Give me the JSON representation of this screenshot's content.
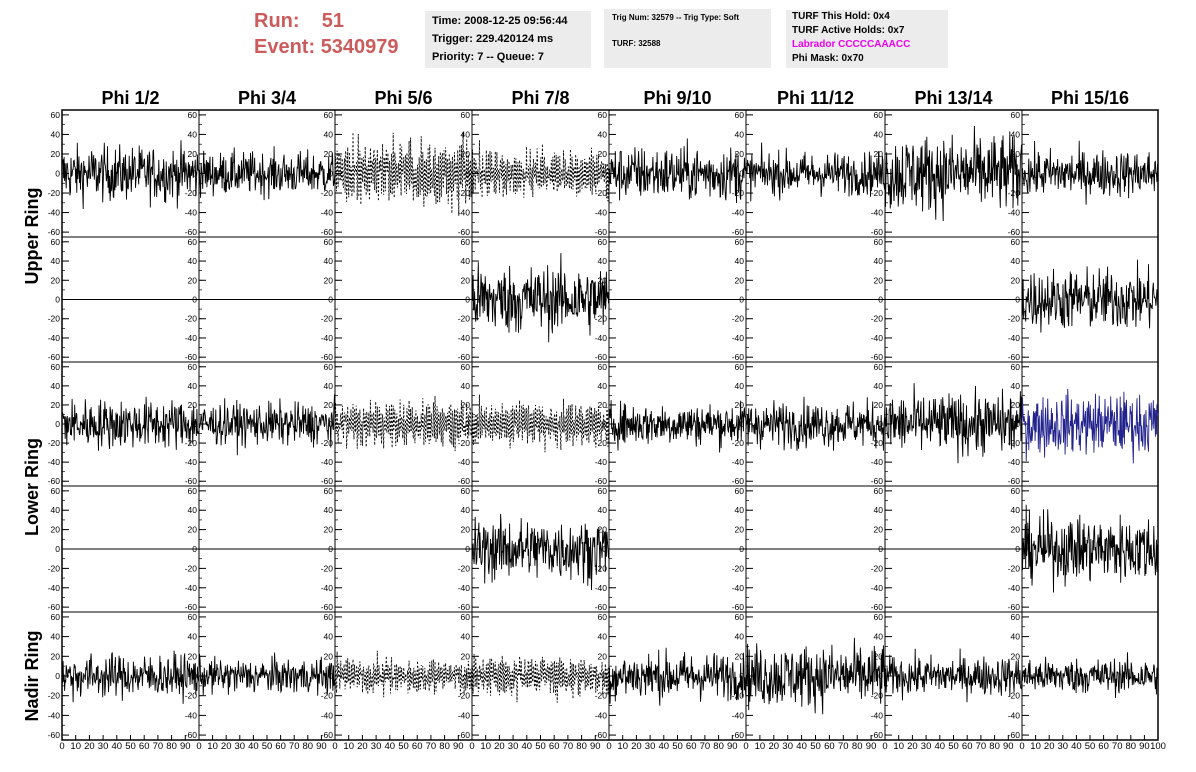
{
  "header": {
    "run_label": "Run:",
    "run_value": "51",
    "event_label": "Event:",
    "event_value": "5340979",
    "header_color": "#cc5c5c"
  },
  "info_time": {
    "time": "Time: 2008-12-25 09:56:44",
    "trigger": "Trigger: 229.420124 ms",
    "priority": "Priority: 7 -- Queue: 7"
  },
  "info_trig": {
    "trig": "Trig Num: 32579 -- Trig Type: Soft",
    "turf": "TURF: 32588"
  },
  "info_turf": {
    "this_hold": "TURF This Hold: 0x4",
    "active_holds": "TURF Active Holds: 0x7",
    "labrador": "Labrador CCCCCAAACC",
    "labrador_color": "#ee00ee",
    "phi_mask": "Phi Mask: 0x70"
  },
  "chart_data": {
    "type": "line",
    "column_labels": [
      "Phi 1/2",
      "Phi 3/4",
      "Phi 5/6",
      "Phi 7/8",
      "Phi 9/10",
      "Phi 11/12",
      "Phi 13/14",
      "Phi 15/16"
    ],
    "ring_labels": [
      "Upper Ring",
      "Lower Ring",
      "Nadir Ring"
    ],
    "xlim": [
      0,
      100
    ],
    "ylim": [
      -65,
      65
    ],
    "y_ticks": [
      -60,
      -40,
      -20,
      0,
      20,
      40,
      60
    ],
    "x_ticks": [
      0,
      10,
      20,
      30,
      40,
      50,
      60,
      70,
      80,
      90,
      100
    ],
    "colors": {
      "normal": "#000000",
      "highlight": "#23238e"
    },
    "panels": [
      [
        "noise",
        "noise",
        "dashed",
        "dashed",
        "noise",
        "noise",
        "noise",
        "noise"
      ],
      [
        "flat",
        "flat",
        "flat",
        "noise",
        "flat",
        "flat",
        "flat",
        "noise"
      ],
      [
        "noise",
        "noise",
        "dashed",
        "dashed",
        "noise",
        "noise",
        "noise",
        "blue"
      ],
      [
        "flat",
        "flat",
        "flat",
        "noise",
        "flat",
        "flat",
        "flat",
        "noise"
      ],
      [
        "noise",
        "noise",
        "dashed",
        "dashed",
        "noise",
        "noise",
        "noise",
        "noise"
      ]
    ],
    "amplitudes": [
      [
        14,
        11,
        22,
        16,
        14,
        11,
        20,
        12
      ],
      [
        0,
        0,
        0,
        18,
        0,
        0,
        0,
        16
      ],
      [
        13,
        11,
        16,
        16,
        11,
        12,
        16,
        16
      ],
      [
        0,
        0,
        0,
        16,
        0,
        0,
        0,
        17
      ],
      [
        11,
        9,
        12,
        14,
        12,
        16,
        10,
        9
      ]
    ]
  }
}
